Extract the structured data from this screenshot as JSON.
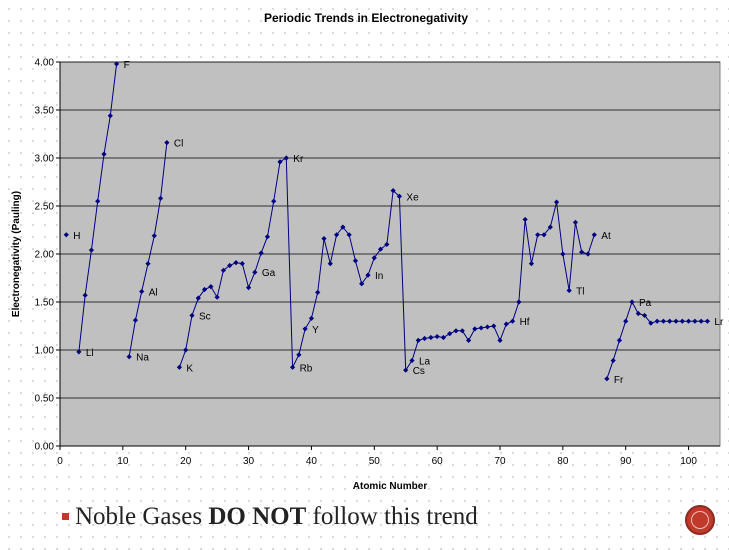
{
  "slide": {
    "bullet_text": "Noble Gases",
    "bullet_bold": "DO NOT",
    "bullet_tail": "follow this trend"
  },
  "chart_data": {
    "type": "line",
    "title": "Periodic Trends in Electronegativity",
    "xlabel": "Atomic Number",
    "ylabel": "Electronegativity (Pauling)",
    "xlim": [
      0,
      105
    ],
    "ylim": [
      0,
      4
    ],
    "xticks": [
      0,
      10,
      20,
      30,
      40,
      50,
      60,
      70,
      80,
      90,
      100
    ],
    "yticks": [
      "0.00",
      "0.50",
      "1.00",
      "1.50",
      "2.00",
      "2.50",
      "3.00",
      "3.50",
      "4.00"
    ],
    "grid": "horizontal",
    "plot_background": "#c0c0c0",
    "line_color": "#000080",
    "series": [
      {
        "segments": [
          [
            [
              1,
              2.2
            ]
          ],
          [
            [
              3,
              0.98
            ],
            [
              4,
              1.57
            ],
            [
              5,
              2.04
            ],
            [
              6,
              2.55
            ],
            [
              7,
              3.04
            ],
            [
              8,
              3.44
            ],
            [
              9,
              3.98
            ]
          ],
          [
            [
              11,
              0.93
            ],
            [
              12,
              1.31
            ],
            [
              13,
              1.61
            ],
            [
              14,
              1.9
            ],
            [
              15,
              2.19
            ],
            [
              16,
              2.58
            ],
            [
              17,
              3.16
            ]
          ],
          [
            [
              19,
              0.82
            ],
            [
              20,
              1.0
            ],
            [
              21,
              1.36
            ],
            [
              22,
              1.54
            ],
            [
              23,
              1.63
            ],
            [
              24,
              1.66
            ],
            [
              25,
              1.55
            ],
            [
              26,
              1.83
            ],
            [
              27,
              1.88
            ],
            [
              28,
              1.91
            ],
            [
              29,
              1.9
            ],
            [
              30,
              1.65
            ],
            [
              31,
              1.81
            ],
            [
              32,
              2.01
            ],
            [
              33,
              2.18
            ],
            [
              34,
              2.55
            ],
            [
              35,
              2.96
            ],
            [
              36,
              3.0
            ],
            [
              37,
              0.82
            ],
            [
              38,
              0.95
            ],
            [
              39,
              1.22
            ],
            [
              40,
              1.33
            ],
            [
              41,
              1.6
            ],
            [
              42,
              2.16
            ],
            [
              43,
              1.9
            ],
            [
              44,
              2.2
            ],
            [
              45,
              2.28
            ],
            [
              46,
              2.2
            ],
            [
              47,
              1.93
            ],
            [
              48,
              1.69
            ],
            [
              49,
              1.78
            ],
            [
              50,
              1.96
            ],
            [
              51,
              2.05
            ],
            [
              52,
              2.1
            ],
            [
              53,
              2.66
            ],
            [
              54,
              2.6
            ],
            [
              55,
              0.79
            ],
            [
              56,
              0.89
            ],
            [
              57,
              1.1
            ],
            [
              58,
              1.12
            ],
            [
              59,
              1.13
            ],
            [
              60,
              1.14
            ],
            [
              61,
              1.13
            ],
            [
              62,
              1.17
            ],
            [
              63,
              1.2
            ],
            [
              64,
              1.2
            ],
            [
              65,
              1.1
            ],
            [
              66,
              1.22
            ],
            [
              67,
              1.23
            ],
            [
              68,
              1.24
            ],
            [
              69,
              1.25
            ],
            [
              70,
              1.1
            ],
            [
              71,
              1.27
            ],
            [
              72,
              1.3
            ],
            [
              73,
              1.5
            ],
            [
              74,
              2.36
            ],
            [
              75,
              1.9
            ],
            [
              76,
              2.2
            ],
            [
              77,
              2.2
            ],
            [
              78,
              2.28
            ],
            [
              79,
              2.54
            ],
            [
              80,
              2.0
            ],
            [
              81,
              1.62
            ],
            [
              82,
              2.33
            ],
            [
              83,
              2.02
            ],
            [
              84,
              2.0
            ],
            [
              85,
              2.2
            ]
          ],
          [
            [
              87,
              0.7
            ],
            [
              88,
              0.89
            ],
            [
              89,
              1.1
            ],
            [
              90,
              1.3
            ],
            [
              91,
              1.5
            ],
            [
              92,
              1.38
            ],
            [
              93,
              1.36
            ],
            [
              94,
              1.28
            ],
            [
              95,
              1.3
            ],
            [
              96,
              1.3
            ],
            [
              97,
              1.3
            ],
            [
              98,
              1.3
            ],
            [
              99,
              1.3
            ],
            [
              100,
              1.3
            ],
            [
              101,
              1.3
            ],
            [
              102,
              1.3
            ],
            [
              103,
              1.3
            ]
          ]
        ]
      }
    ],
    "annotations": [
      {
        "label": "H",
        "x": 1,
        "y": 2.2
      },
      {
        "label": "Li",
        "x": 3,
        "y": 0.98
      },
      {
        "label": "F",
        "x": 9,
        "y": 3.98
      },
      {
        "label": "Na",
        "x": 11,
        "y": 0.93
      },
      {
        "label": "Al",
        "x": 13,
        "y": 1.61
      },
      {
        "label": "Cl",
        "x": 17,
        "y": 3.16
      },
      {
        "label": "K",
        "x": 19,
        "y": 0.82
      },
      {
        "label": "Sc",
        "x": 21,
        "y": 1.36
      },
      {
        "label": "Ga",
        "x": 31,
        "y": 1.81
      },
      {
        "label": "Kr",
        "x": 36,
        "y": 3.0
      },
      {
        "label": "Rb",
        "x": 37,
        "y": 0.82
      },
      {
        "label": "Y",
        "x": 39,
        "y": 1.22
      },
      {
        "label": "In",
        "x": 49,
        "y": 1.78
      },
      {
        "label": "Xe",
        "x": 54,
        "y": 2.6
      },
      {
        "label": "La",
        "x": 56,
        "y": 0.89
      },
      {
        "label": "Cs",
        "x": 55,
        "y": 0.79
      },
      {
        "label": "Hf",
        "x": 72,
        "y": 1.3
      },
      {
        "label": "Tl",
        "x": 81,
        "y": 1.62
      },
      {
        "label": "At",
        "x": 85,
        "y": 2.2
      },
      {
        "label": "Fr",
        "x": 87,
        "y": 0.7
      },
      {
        "label": "Pa",
        "x": 91,
        "y": 1.5
      },
      {
        "label": "Lr",
        "x": 103,
        "y": 1.3
      }
    ]
  }
}
